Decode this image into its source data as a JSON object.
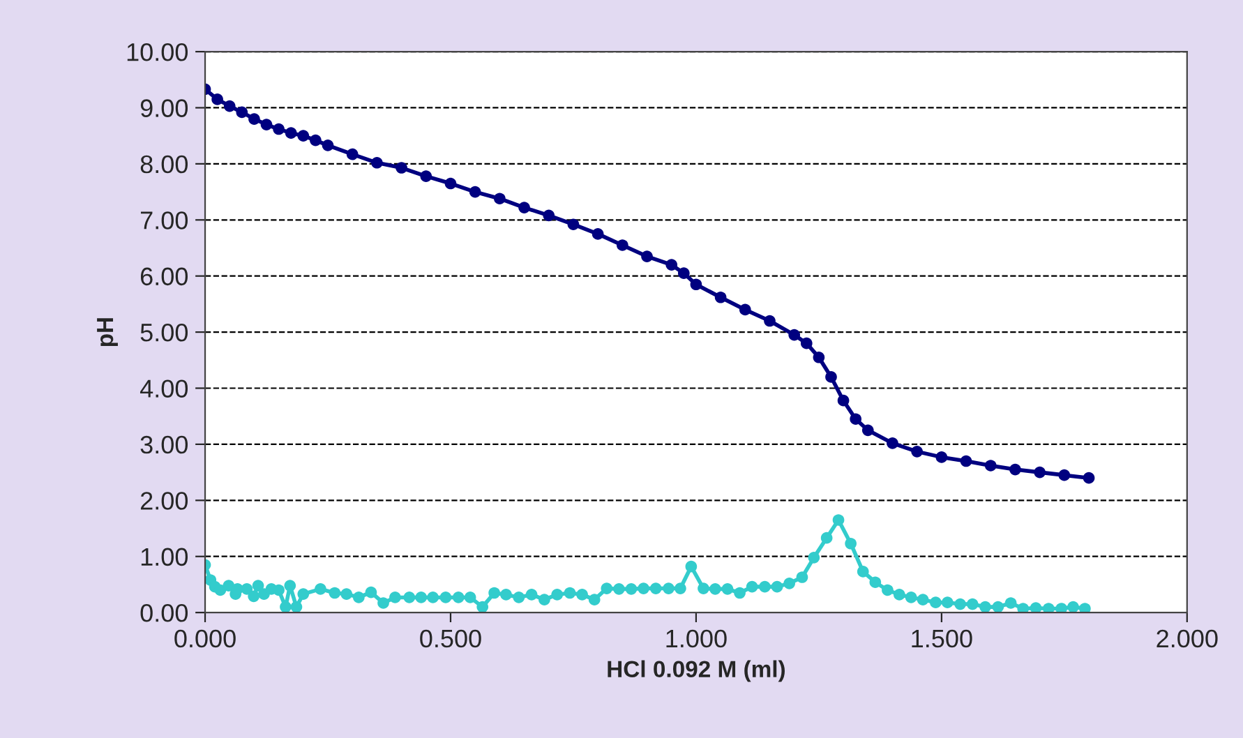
{
  "chart_data": {
    "type": "line",
    "xlabel": "HCl 0.092 M (ml)",
    "ylabel": "pH",
    "xlim": [
      0,
      2
    ],
    "xticks": [
      {
        "value": 0,
        "label": "0.000"
      },
      {
        "value": 0.5,
        "label": "0.500"
      },
      {
        "value": 1,
        "label": "1.000"
      },
      {
        "value": 1.5,
        "label": "1.500"
      },
      {
        "value": 2,
        "label": "2.000"
      }
    ],
    "ylim": [
      0,
      10
    ],
    "yticks": [
      {
        "value": 0,
        "label": "0.00"
      },
      {
        "value": 1,
        "label": "1.00"
      },
      {
        "value": 2,
        "label": "2.00"
      },
      {
        "value": 3,
        "label": "3.00"
      },
      {
        "value": 4,
        "label": "4.00"
      },
      {
        "value": 5,
        "label": "5.00"
      },
      {
        "value": 6,
        "label": "6.00"
      },
      {
        "value": 7,
        "label": "7.00"
      },
      {
        "value": 8,
        "label": "8.00"
      },
      {
        "value": 9,
        "label": "9.00"
      },
      {
        "value": 10,
        "label": "10.00"
      }
    ],
    "grid": "y",
    "legend": false,
    "marker": "circle",
    "line_style": "solid",
    "series": [
      {
        "color": "#000080",
        "x": [
          0,
          0.025,
          0.05,
          0.075,
          0.1,
          0.125,
          0.15,
          0.175,
          0.2,
          0.225,
          0.25,
          0.3,
          0.35,
          0.4,
          0.45,
          0.5,
          0.55,
          0.6,
          0.65,
          0.7,
          0.75,
          0.8,
          0.85,
          0.9,
          0.95,
          0.975,
          1.0,
          1.05,
          1.1,
          1.15,
          1.2,
          1.225,
          1.25,
          1.275,
          1.3,
          1.325,
          1.35,
          1.4,
          1.45,
          1.5,
          1.55,
          1.6,
          1.65,
          1.7,
          1.75,
          1.8
        ],
        "values": [
          9.33,
          9.15,
          9.03,
          8.92,
          8.8,
          8.7,
          8.62,
          8.55,
          8.5,
          8.42,
          8.33,
          8.17,
          8.02,
          7.93,
          7.78,
          7.65,
          7.5,
          7.38,
          7.22,
          7.08,
          6.92,
          6.75,
          6.55,
          6.35,
          6.2,
          6.05,
          5.85,
          5.62,
          5.4,
          5.2,
          4.95,
          4.8,
          4.55,
          4.2,
          3.78,
          3.45,
          3.25,
          3.02,
          2.87,
          2.77,
          2.7,
          2.62,
          2.55,
          2.5,
          2.45,
          2.4
        ]
      },
      {
        "color": "#33cccc",
        "x": [
          0,
          0.011,
          0.02,
          0.031,
          0.048,
          0.062,
          0.066,
          0.085,
          0.099,
          0.108,
          0.12,
          0.135,
          0.15,
          0.164,
          0.173,
          0.186,
          0.2,
          0.235,
          0.264,
          0.288,
          0.313,
          0.338,
          0.363,
          0.387,
          0.416,
          0.44,
          0.464,
          0.49,
          0.516,
          0.54,
          0.565,
          0.589,
          0.613,
          0.639,
          0.665,
          0.691,
          0.717,
          0.743,
          0.768,
          0.793,
          0.818,
          0.843,
          0.868,
          0.893,
          0.918,
          0.944,
          0.968,
          0.99,
          1.015,
          1.039,
          1.064,
          1.089,
          1.114,
          1.14,
          1.165,
          1.19,
          1.216,
          1.24,
          1.266,
          1.29,
          1.315,
          1.34,
          1.365,
          1.39,
          1.414,
          1.438,
          1.462,
          1.488,
          1.512,
          1.538,
          1.563,
          1.589,
          1.615,
          1.641,
          1.666,
          1.692,
          1.718,
          1.744,
          1.768,
          1.792
        ],
        "values": [
          0.85,
          0.58,
          0.46,
          0.4,
          0.48,
          0.33,
          0.42,
          0.42,
          0.29,
          0.48,
          0.33,
          0.42,
          0.4,
          0.1,
          0.48,
          0.1,
          0.33,
          0.42,
          0.35,
          0.33,
          0.27,
          0.36,
          0.17,
          0.27,
          0.27,
          0.27,
          0.27,
          0.27,
          0.27,
          0.27,
          0.1,
          0.35,
          0.32,
          0.27,
          0.32,
          0.23,
          0.32,
          0.35,
          0.32,
          0.23,
          0.43,
          0.42,
          0.42,
          0.43,
          0.43,
          0.43,
          0.43,
          0.82,
          0.43,
          0.42,
          0.42,
          0.35,
          0.46,
          0.46,
          0.46,
          0.52,
          0.63,
          0.98,
          1.33,
          1.65,
          1.23,
          0.73,
          0.54,
          0.4,
          0.32,
          0.27,
          0.23,
          0.18,
          0.18,
          0.15,
          0.15,
          0.1,
          0.1,
          0.17,
          0.07,
          0.08,
          0.07,
          0.07,
          0.1,
          0.07
        ]
      }
    ]
  }
}
